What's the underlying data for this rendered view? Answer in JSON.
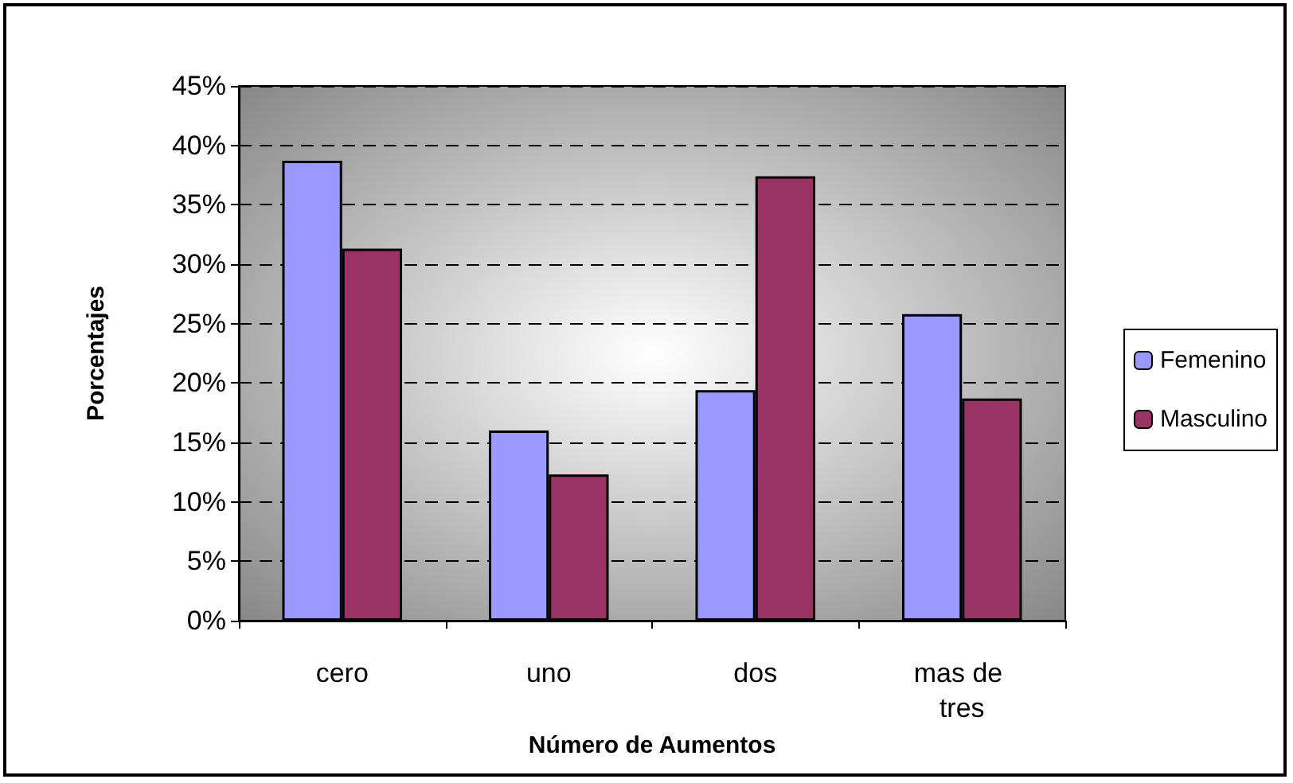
{
  "chart_data": {
    "type": "bar",
    "xlabel": "Número de Aumentos",
    "ylabel": "Porcentajes",
    "categories": [
      "cero",
      "uno",
      "dos",
      "mas de tres"
    ],
    "series": [
      {
        "name": "Femenino",
        "color": "#9999ff",
        "values": [
          38.7,
          16.0,
          19.4,
          25.8
        ]
      },
      {
        "name": "Masculino",
        "color": "#993366",
        "values": [
          31.3,
          12.3,
          37.4,
          18.7
        ]
      }
    ],
    "ylim": [
      0,
      45
    ],
    "yticks": [
      {
        "value": 0,
        "label": "0%"
      },
      {
        "value": 5,
        "label": "5%"
      },
      {
        "value": 10,
        "label": "10%"
      },
      {
        "value": 15,
        "label": "15%"
      },
      {
        "value": 20,
        "label": "20%"
      },
      {
        "value": 25,
        "label": "25%"
      },
      {
        "value": 30,
        "label": "30%"
      },
      {
        "value": 35,
        "label": "35%"
      },
      {
        "value": 40,
        "label": "40%"
      },
      {
        "value": 45,
        "label": "45%"
      }
    ],
    "grid": "y",
    "legend": "right"
  }
}
